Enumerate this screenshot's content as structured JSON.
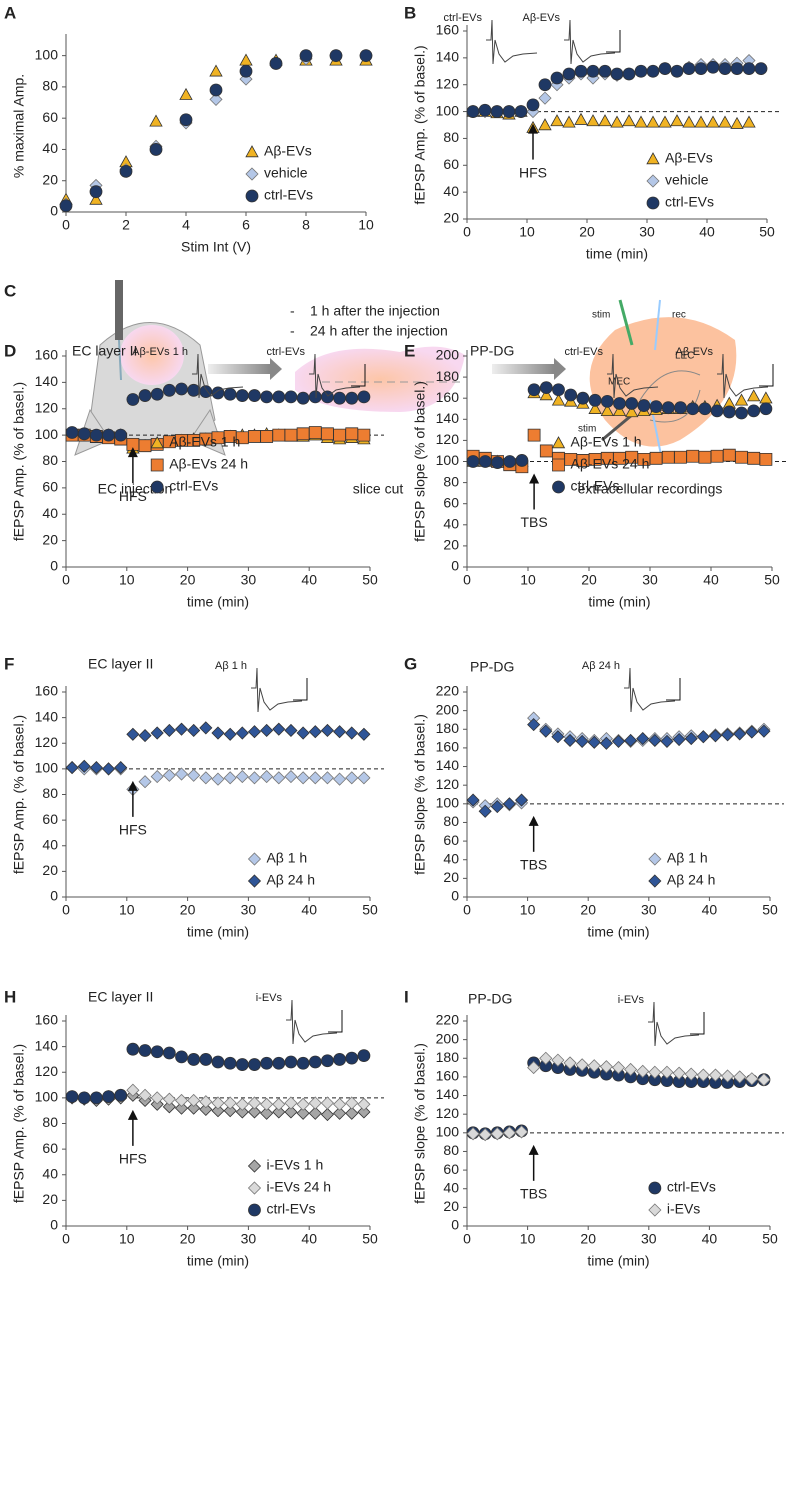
{
  "chart_data": [
    {
      "type": "scatter",
      "panel_label": "A",
      "xlabel": "Stim Int (V)",
      "ylabel": "% maximal Amp.",
      "xlim": [
        0,
        10
      ],
      "ylim": [
        0,
        110
      ],
      "xticks": [
        0,
        2,
        4,
        6,
        8,
        10
      ],
      "yticks": [
        0,
        20,
        40,
        60,
        80,
        100
      ],
      "legend": "lower right",
      "x": [
        0,
        1,
        2,
        3,
        4,
        5,
        6,
        7,
        8,
        9,
        10
      ],
      "series": [
        {
          "name": "Aβ-EVs",
          "color": "#f0b323",
          "marker": "triangle",
          "values": [
            8,
            8,
            32,
            58,
            75,
            90,
            97,
            97,
            97,
            97,
            97
          ]
        },
        {
          "name": "vehicle",
          "color": "#b4c7e7",
          "marker": "diamond",
          "values": [
            5,
            17,
            27,
            42,
            57,
            72,
            85,
            95,
            98,
            100,
            100
          ]
        },
        {
          "name": "ctrl-EVs",
          "color": "#1f3864",
          "marker": "circle",
          "values": [
            4,
            13,
            26,
            40,
            59,
            78,
            90,
            95,
            100,
            100,
            100
          ]
        }
      ]
    },
    {
      "type": "scatter",
      "panel_label": "B",
      "xlabel": "time (min)",
      "ylabel": "fEPSP Amp. (% of basel.)",
      "xlim": [
        0,
        50
      ],
      "ylim": [
        20,
        160
      ],
      "xticks": [
        0,
        10,
        20,
        30,
        40,
        50
      ],
      "yticks": [
        20,
        40,
        60,
        80,
        100,
        120,
        140,
        160
      ],
      "legend": "lower right",
      "hline": 100,
      "annotation": {
        "text": "HFS",
        "x": 11
      },
      "inset_labels": [
        "ctrl-EVs",
        "Aβ-EVs"
      ],
      "x": [
        1,
        3,
        5,
        7,
        9,
        11,
        13,
        15,
        17,
        19,
        21,
        23,
        25,
        27,
        29,
        31,
        33,
        35,
        37,
        39,
        41,
        43,
        45,
        47,
        49
      ],
      "series": [
        {
          "name": "Aβ-EVs",
          "color": "#f0b323",
          "marker": "triangle",
          "values": [
            100,
            100,
            99,
            98,
            100,
            88,
            90,
            93,
            92,
            94,
            93,
            93,
            92,
            93,
            92,
            92,
            92,
            93,
            92,
            92,
            92,
            92,
            91,
            92,
            null
          ]
        },
        {
          "name": "vehicle",
          "color": "#b4c7e7",
          "marker": "diamond",
          "values": [
            100,
            100,
            100,
            100,
            100,
            100,
            110,
            120,
            125,
            128,
            125,
            128,
            127,
            128,
            130,
            130,
            132,
            130,
            133,
            135,
            135,
            135,
            136,
            138,
            null
          ]
        },
        {
          "name": "ctrl-EVs",
          "color": "#1f3864",
          "marker": "circle",
          "values": [
            100,
            101,
            100,
            100,
            100,
            105,
            120,
            125,
            128,
            130,
            130,
            130,
            128,
            128,
            130,
            130,
            132,
            130,
            132,
            132,
            133,
            132,
            132,
            132,
            132
          ]
        }
      ]
    },
    {
      "type": "scatter",
      "panel_label": "D",
      "title": "EC layer II",
      "xlabel": "time (min)",
      "ylabel": "fEPSP Amp. (% of basel.)",
      "xlim": [
        0,
        50
      ],
      "ylim": [
        0,
        160
      ],
      "xticks": [
        0,
        10,
        20,
        30,
        40,
        50
      ],
      "yticks": [
        0,
        20,
        40,
        60,
        80,
        100,
        120,
        140,
        160
      ],
      "legend": "lower center",
      "hline": 100,
      "annotation": {
        "text": "HFS",
        "x": 11
      },
      "inset_labels": [
        "Aβ-EVs 1 h",
        "ctrl-EVs"
      ],
      "x": [
        1,
        3,
        5,
        7,
        9,
        11,
        13,
        15,
        17,
        19,
        21,
        23,
        25,
        27,
        29,
        31,
        33,
        35,
        37,
        39,
        41,
        43,
        45,
        47,
        49
      ],
      "series": [
        {
          "name": "Aβ-EVs 1 h",
          "color": "#f0b323",
          "marker": "triangle",
          "values": [
            101,
            100,
            98,
            100,
            100,
            90,
            92,
            94,
            95,
            96,
            97,
            97,
            98,
            99,
            100,
            100,
            101,
            100,
            99,
            99,
            100,
            98,
            97,
            98,
            97
          ]
        },
        {
          "name": "Aβ-EVs 24 h",
          "color": "#ed7d31",
          "marker": "square",
          "values": [
            100,
            100,
            99,
            98,
            97,
            93,
            92,
            93,
            95,
            96,
            96,
            97,
            98,
            99,
            98,
            99,
            99,
            100,
            100,
            101,
            102,
            101,
            100,
            101,
            100
          ]
        },
        {
          "name": "ctrl-EVs",
          "color": "#1f3864",
          "marker": "circle",
          "values": [
            102,
            101,
            100,
            100,
            100,
            127,
            130,
            131,
            134,
            135,
            134,
            133,
            132,
            131,
            130,
            130,
            129,
            129,
            129,
            128,
            129,
            129,
            128,
            128,
            129
          ]
        }
      ]
    },
    {
      "type": "scatter",
      "panel_label": "E",
      "title": "PP-DG",
      "xlabel": "time (min)",
      "ylabel": "fEPSP slope (% of basel.)",
      "xlim": [
        0,
        50
      ],
      "ylim": [
        0,
        200
      ],
      "xticks": [
        0,
        10,
        20,
        30,
        40,
        50
      ],
      "yticks": [
        0,
        20,
        40,
        60,
        80,
        100,
        120,
        140,
        160,
        180,
        200
      ],
      "legend": "lower center",
      "hline": 100,
      "annotation": {
        "text": "TBS",
        "x": 11
      },
      "inset_labels": [
        "ctrl-EVs",
        "Aβ-EVs"
      ],
      "x": [
        1,
        3,
        5,
        7,
        9,
        11,
        13,
        15,
        17,
        19,
        21,
        23,
        25,
        27,
        29,
        31,
        33,
        35,
        37,
        39,
        41,
        43,
        45,
        47,
        49
      ],
      "series": [
        {
          "name": "Aβ-EVs 1 h",
          "color": "#f0b323",
          "marker": "triangle",
          "values": [
            100,
            100,
            100,
            99,
            100,
            165,
            163,
            158,
            157,
            155,
            150,
            148,
            148,
            147,
            148,
            149,
            150,
            150,
            152,
            152,
            153,
            155,
            158,
            162,
            160
          ]
        },
        {
          "name": "Aβ-EVs 24 h",
          "color": "#ed7d31",
          "marker": "square",
          "values": [
            105,
            103,
            100,
            97,
            95,
            125,
            110,
            103,
            102,
            101,
            102,
            103,
            103,
            104,
            102,
            103,
            104,
            104,
            105,
            104,
            105,
            106,
            104,
            103,
            102
          ]
        },
        {
          "name": "ctrl-EVs",
          "color": "#1f3864",
          "marker": "circle",
          "values": [
            100,
            100,
            99,
            100,
            101,
            168,
            170,
            168,
            163,
            160,
            158,
            157,
            155,
            155,
            153,
            152,
            151,
            151,
            150,
            150,
            148,
            147,
            146,
            148,
            150
          ]
        }
      ]
    },
    {
      "type": "scatter",
      "panel_label": "F",
      "title": "EC layer II",
      "xlabel": "time (min)",
      "ylabel": "fEPSP Amp. (% of basel.)",
      "xlim": [
        0,
        50
      ],
      "ylim": [
        0,
        160
      ],
      "xticks": [
        0,
        10,
        20,
        30,
        40,
        50
      ],
      "yticks": [
        0,
        20,
        40,
        60,
        80,
        100,
        120,
        140,
        160
      ],
      "legend": "lower right",
      "hline": 100,
      "annotation": {
        "text": "HFS",
        "x": 11
      },
      "inset_labels": [
        "Aβ 1 h"
      ],
      "x": [
        1,
        3,
        5,
        7,
        9,
        11,
        13,
        15,
        17,
        19,
        21,
        23,
        25,
        27,
        29,
        31,
        33,
        35,
        37,
        39,
        41,
        43,
        45,
        47,
        49
      ],
      "series": [
        {
          "name": "Aβ  1 h",
          "color": "#b4c7e7",
          "marker": "diamond",
          "values": [
            101,
            100,
            100,
            100,
            100,
            84,
            90,
            94,
            95,
            96,
            95,
            93,
            92,
            93,
            94,
            93,
            94,
            93,
            94,
            93,
            93,
            93,
            92,
            93,
            93
          ]
        },
        {
          "name": "Aβ 24 h",
          "color": "#2f5597",
          "marker": "diamond",
          "values": [
            101,
            102,
            101,
            100,
            101,
            127,
            126,
            128,
            130,
            131,
            130,
            132,
            128,
            127,
            128,
            129,
            130,
            131,
            130,
            128,
            129,
            130,
            129,
            128,
            127
          ]
        }
      ]
    },
    {
      "type": "scatter",
      "panel_label": "G",
      "title": "PP-DG",
      "xlabel": "time (min)",
      "ylabel": "fEPSP slope (% of basel.)",
      "xlim": [
        0,
        50
      ],
      "ylim": [
        0,
        220
      ],
      "xticks": [
        0,
        10,
        20,
        30,
        40,
        50
      ],
      "yticks": [
        0,
        20,
        40,
        60,
        80,
        100,
        120,
        140,
        160,
        180,
        200,
        220
      ],
      "legend": "lower right",
      "hline": 100,
      "annotation": {
        "text": "TBS",
        "x": 11
      },
      "inset_labels": [
        "Aβ 24 h"
      ],
      "x": [
        1,
        3,
        5,
        7,
        9,
        11,
        13,
        15,
        17,
        19,
        21,
        23,
        25,
        27,
        29,
        31,
        33,
        35,
        37,
        39,
        41,
        43,
        45,
        47,
        49
      ],
      "series": [
        {
          "name": "Aβ  1 h",
          "color": "#b4c7e7",
          "marker": "diamond",
          "values": [
            102,
            98,
            100,
            99,
            101,
            192,
            180,
            175,
            172,
            170,
            168,
            170,
            168,
            167,
            168,
            170,
            170,
            172,
            173,
            172,
            174,
            175,
            176,
            178,
            180
          ]
        },
        {
          "name": "Aβ  24 h",
          "color": "#2f5597",
          "marker": "diamond",
          "values": [
            104,
            92,
            97,
            100,
            104,
            185,
            178,
            172,
            168,
            167,
            166,
            165,
            167,
            168,
            170,
            168,
            167,
            169,
            170,
            172,
            173,
            174,
            175,
            177,
            178
          ]
        }
      ]
    },
    {
      "type": "scatter",
      "panel_label": "H",
      "title": "EC layer II",
      "xlabel": "time (min)",
      "ylabel": "fEPSP Amp. (% of basel.)",
      "xlim": [
        0,
        50
      ],
      "ylim": [
        0,
        160
      ],
      "xticks": [
        0,
        10,
        20,
        30,
        40,
        50
      ],
      "yticks": [
        0,
        20,
        40,
        60,
        80,
        100,
        120,
        140,
        160
      ],
      "legend": "lower right",
      "hline": 100,
      "annotation": {
        "text": "HFS",
        "x": 11
      },
      "inset_labels": [
        "i-EVs"
      ],
      "x": [
        1,
        3,
        5,
        7,
        9,
        11,
        13,
        15,
        17,
        19,
        21,
        23,
        25,
        27,
        29,
        31,
        33,
        35,
        37,
        39,
        41,
        43,
        45,
        47,
        49
      ],
      "series": [
        {
          "name": "i-EVs 1 h",
          "color": "#a6a6a6",
          "marker": "diamond",
          "values": [
            100,
            99,
            98,
            99,
            100,
            102,
            98,
            95,
            93,
            92,
            92,
            91,
            90,
            90,
            89,
            89,
            88,
            89,
            89,
            88,
            88,
            87,
            88,
            88,
            89
          ]
        },
        {
          "name": "i-EVs 24 h",
          "color": "#d9d9d9",
          "marker": "diamond",
          "values": [
            101,
            100,
            100,
            101,
            102,
            106,
            102,
            100,
            99,
            98,
            98,
            97,
            96,
            96,
            95,
            96,
            95,
            95,
            96,
            95,
            96,
            96,
            95,
            96,
            95
          ]
        },
        {
          "name": "ctrl-EVs",
          "color": "#1f3864",
          "marker": "circle",
          "values": [
            101,
            100,
            100,
            101,
            102,
            138,
            137,
            136,
            135,
            132,
            130,
            130,
            128,
            127,
            126,
            126,
            127,
            127,
            128,
            127,
            128,
            129,
            130,
            131,
            133
          ]
        }
      ]
    },
    {
      "type": "scatter",
      "panel_label": "I",
      "title": "PP-DG",
      "xlabel": "time (min)",
      "ylabel": "fEPSP slope (% of basel.)",
      "xlim": [
        0,
        50
      ],
      "ylim": [
        0,
        220
      ],
      "xticks": [
        0,
        10,
        20,
        30,
        40,
        50
      ],
      "yticks": [
        0,
        20,
        40,
        60,
        80,
        100,
        120,
        140,
        160,
        180,
        200,
        220
      ],
      "legend": "lower right",
      "hline": 100,
      "annotation": {
        "text": "TBS",
        "x": 11
      },
      "inset_labels": [
        "i-EVs"
      ],
      "x": [
        1,
        3,
        5,
        7,
        9,
        11,
        13,
        15,
        17,
        19,
        21,
        23,
        25,
        27,
        29,
        31,
        33,
        35,
        37,
        39,
        41,
        43,
        45,
        47,
        49
      ],
      "series": [
        {
          "name": "ctrl-EVs",
          "color": "#1f3864",
          "marker": "circle",
          "values": [
            100,
            99,
            100,
            101,
            102,
            175,
            172,
            170,
            168,
            167,
            165,
            163,
            162,
            160,
            158,
            157,
            156,
            155,
            155,
            155,
            154,
            154,
            155,
            156,
            157
          ]
        },
        {
          "name": "i-EVs",
          "color": "#d9d9d9",
          "marker": "diamond",
          "values": [
            99,
            98,
            99,
            100,
            101,
            170,
            180,
            178,
            175,
            173,
            172,
            171,
            170,
            168,
            166,
            165,
            165,
            164,
            163,
            162,
            162,
            161,
            160,
            158,
            157
          ]
        }
      ]
    }
  ],
  "diagram": {
    "panel_label": "C",
    "timepoints": [
      "1 h after the injection",
      "24 h after the injection"
    ],
    "steps": [
      "EC injection",
      "slice cut",
      "extracellular recordings"
    ],
    "slice_labels": [
      "stim",
      "rec",
      "LEC",
      "MEC",
      "DG",
      "stim",
      "rec"
    ]
  }
}
